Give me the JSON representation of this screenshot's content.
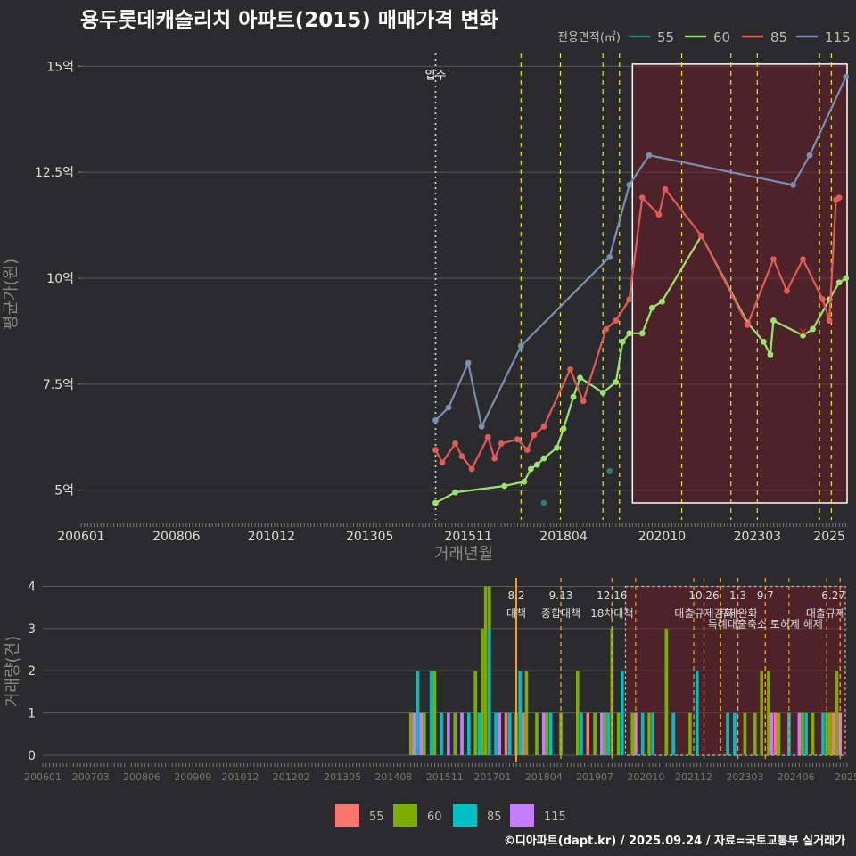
{
  "chart_data": [
    {
      "type": "line",
      "title": "용두롯데캐슬리치 아파트(2015) 매매가격 변화",
      "xlabel": "거래년월",
      "ylabel": "평균가(원)",
      "ylim": [
        4.3,
        15.3
      ],
      "y_ticks": [
        {
          "v": 5,
          "label": "5억"
        },
        {
          "v": 7.5,
          "label": "7.5억"
        },
        {
          "v": 10,
          "label": "10억"
        },
        {
          "v": 12.5,
          "label": "12.5억"
        },
        {
          "v": 15,
          "label": "15억"
        }
      ],
      "x_ticks": [
        {
          "v": 2006.0,
          "label": "200601"
        },
        {
          "v": 2008.42,
          "label": "200806"
        },
        {
          "v": 2010.83,
          "label": "201012"
        },
        {
          "v": 2013.33,
          "label": "201305"
        },
        {
          "v": 2015.83,
          "label": "201511"
        },
        {
          "v": 2018.25,
          "label": "201804"
        },
        {
          "v": 2020.75,
          "label": "202010"
        },
        {
          "v": 2023.17,
          "label": "202303"
        },
        {
          "v": 2025.0,
          "label": "2025"
        }
      ],
      "xlim": [
        2006.0,
        2025.45
      ],
      "legend_title": "전용면적(㎡)",
      "colors": {
        "55": "#2e7d7a",
        "60": "#9be36f",
        "85": "#e05a5a",
        "115": "#7a8fb0"
      },
      "series": [
        {
          "name": "55",
          "line": false,
          "points": [
            [
              2017.75,
              4.7
            ],
            [
              2019.42,
              5.45
            ]
          ]
        },
        {
          "name": "60",
          "line": true,
          "points": [
            [
              2015.0,
              4.7
            ],
            [
              2015.5,
              4.95
            ],
            [
              2016.75,
              5.1
            ],
            [
              2017.25,
              5.2
            ],
            [
              2017.42,
              5.5
            ],
            [
              2017.58,
              5.6
            ],
            [
              2017.75,
              5.75
            ],
            [
              2018.08,
              6.0
            ],
            [
              2018.25,
              6.45
            ],
            [
              2018.5,
              7.2
            ],
            [
              2018.67,
              7.65
            ],
            [
              2019.25,
              7.3
            ],
            [
              2019.58,
              7.55
            ],
            [
              2019.75,
              8.5
            ],
            [
              2019.92,
              8.7
            ],
            [
              2020.25,
              8.7
            ],
            [
              2020.5,
              9.3
            ],
            [
              2020.75,
              9.45
            ],
            [
              2021.75,
              11.0
            ],
            [
              2022.92,
              8.95
            ],
            [
              2023.33,
              8.5
            ],
            [
              2023.5,
              8.2
            ],
            [
              2023.58,
              9.0
            ],
            [
              2024.33,
              8.65
            ],
            [
              2024.58,
              8.8
            ],
            [
              2025.0,
              9.5
            ],
            [
              2025.25,
              9.9
            ],
            [
              2025.42,
              10.0
            ]
          ]
        },
        {
          "name": "85",
          "line": true,
          "points": [
            [
              2015.0,
              5.95
            ],
            [
              2015.17,
              5.65
            ],
            [
              2015.5,
              6.1
            ],
            [
              2015.67,
              5.8
            ],
            [
              2015.92,
              5.5
            ],
            [
              2016.33,
              6.25
            ],
            [
              2016.5,
              5.75
            ],
            [
              2016.67,
              6.1
            ],
            [
              2017.08,
              6.2
            ],
            [
              2017.33,
              5.95
            ],
            [
              2017.5,
              6.3
            ],
            [
              2017.75,
              6.5
            ],
            [
              2018.42,
              7.85
            ],
            [
              2018.75,
              7.1
            ],
            [
              2019.33,
              8.8
            ],
            [
              2019.58,
              9.0
            ],
            [
              2019.92,
              9.5
            ],
            [
              2020.25,
              11.9
            ],
            [
              2020.67,
              11.5
            ],
            [
              2020.83,
              12.1
            ],
            [
              2021.75,
              11.0
            ],
            [
              2022.92,
              8.9
            ],
            [
              2023.58,
              10.45
            ],
            [
              2023.92,
              9.7
            ],
            [
              2024.33,
              10.45
            ],
            [
              2024.83,
              9.5
            ],
            [
              2025.0,
              9.0
            ],
            [
              2025.17,
              11.85
            ],
            [
              2025.25,
              11.9
            ]
          ]
        },
        {
          "name": "115",
          "line": true,
          "points": [
            [
              2015.0,
              6.65
            ],
            [
              2015.33,
              6.95
            ],
            [
              2015.83,
              8.0
            ],
            [
              2016.17,
              6.5
            ],
            [
              2017.17,
              8.4
            ],
            [
              2019.42,
              10.5
            ],
            [
              2019.92,
              12.2
            ],
            [
              2020.42,
              12.9
            ],
            [
              2024.08,
              12.2
            ],
            [
              2024.5,
              12.9
            ],
            [
              2025.42,
              14.75
            ]
          ]
        }
      ],
      "annotations": [
        {
          "text": "입주",
          "x": 2015.0,
          "y": 14.7
        },
        {
          "text": "×",
          "x": 2024.33,
          "y": 8.75
        }
      ],
      "vlines": [
        2015.0,
        2017.17,
        2018.17,
        2019.25,
        2019.67,
        2021.25,
        2022.5,
        2023.17,
        2024.75,
        2025.05
      ],
      "highlight": {
        "x": [
          2020.0,
          2025.45
        ],
        "y": [
          4.7,
          15.05
        ]
      }
    },
    {
      "type": "bar",
      "ylabel": "거래량(건)",
      "ylim": [
        0,
        4.2
      ],
      "y_ticks": [
        {
          "v": 0,
          "label": "0"
        },
        {
          "v": 1,
          "label": "1"
        },
        {
          "v": 2,
          "label": "2"
        },
        {
          "v": 3,
          "label": "3"
        },
        {
          "v": 4,
          "label": "4"
        }
      ],
      "x_ticks": [
        {
          "v": 2006.0,
          "label": "200601"
        },
        {
          "v": 2007.17,
          "label": "200703"
        },
        {
          "v": 2008.42,
          "label": "200806"
        },
        {
          "v": 2009.67,
          "label": "200909"
        },
        {
          "v": 2010.83,
          "label": "201012"
        },
        {
          "v": 2012.08,
          "label": "201202"
        },
        {
          "v": 2013.33,
          "label": "201305"
        },
        {
          "v": 2014.58,
          "label": "201408"
        },
        {
          "v": 2015.83,
          "label": "201511"
        },
        {
          "v": 2017.0,
          "label": "201701"
        },
        {
          "v": 2018.25,
          "label": "201804"
        },
        {
          "v": 2019.5,
          "label": "201907"
        },
        {
          "v": 2020.75,
          "label": "202010"
        },
        {
          "v": 2021.92,
          "label": "202112"
        },
        {
          "v": 2023.17,
          "label": "202303"
        },
        {
          "v": 2024.42,
          "label": "202406"
        },
        {
          "v": 2025.67,
          "label": "2025"
        }
      ],
      "xlim": [
        2006.0,
        2025.67
      ],
      "colors": {
        "55": "#f8766d",
        "60": "#7cae00",
        "85": "#00bfc4",
        "115": "#c77cff"
      },
      "legend": [
        "55",
        "60",
        "85",
        "115"
      ],
      "series": [
        {
          "name": "55",
          "points": [
            [
              2017.33,
              1
            ],
            [
              2017.75,
              1
            ],
            [
              2019.33,
              1
            ],
            [
              2023.92,
              1
            ],
            [
              2025.33,
              1
            ]
          ]
        },
        {
          "name": "60",
          "points": [
            [
              2015.0,
              1
            ],
            [
              2015.33,
              1
            ],
            [
              2015.58,
              2
            ],
            [
              2016.08,
              1
            ],
            [
              2016.58,
              2
            ],
            [
              2016.75,
              3
            ],
            [
              2016.83,
              4
            ],
            [
              2016.92,
              4
            ],
            [
              2017.58,
              1
            ],
            [
              2017.83,
              2
            ],
            [
              2018.08,
              1
            ],
            [
              2018.33,
              1
            ],
            [
              2018.67,
              1
            ],
            [
              2019.08,
              2
            ],
            [
              2019.5,
              1
            ],
            [
              2019.75,
              1
            ],
            [
              2019.92,
              3
            ],
            [
              2020.08,
              1
            ],
            [
              2020.42,
              1
            ],
            [
              2020.83,
              1
            ],
            [
              2021.25,
              3
            ],
            [
              2021.83,
              1
            ],
            [
              2023.17,
              1
            ],
            [
              2023.42,
              1
            ],
            [
              2023.58,
              2
            ],
            [
              2023.75,
              2
            ],
            [
              2024.0,
              1
            ],
            [
              2024.58,
              1
            ],
            [
              2024.83,
              1
            ],
            [
              2025.17,
              1
            ],
            [
              2025.25,
              1
            ],
            [
              2025.42,
              2
            ]
          ]
        },
        {
          "name": "85",
          "points": [
            [
              2015.17,
              2
            ],
            [
              2015.5,
              2
            ],
            [
              2015.75,
              1
            ],
            [
              2016.42,
              1
            ],
            [
              2016.67,
              1
            ],
            [
              2016.92,
              3
            ],
            [
              2017.08,
              1
            ],
            [
              2017.42,
              1
            ],
            [
              2017.67,
              2
            ],
            [
              2018.42,
              1
            ],
            [
              2019.17,
              1
            ],
            [
              2019.83,
              1
            ],
            [
              2020.17,
              2
            ],
            [
              2020.67,
              1
            ],
            [
              2020.92,
              1
            ],
            [
              2021.42,
              1
            ],
            [
              2022.0,
              2
            ],
            [
              2022.75,
              1
            ],
            [
              2022.92,
              1
            ],
            [
              2024.25,
              1
            ],
            [
              2024.67,
              1
            ],
            [
              2025.08,
              1
            ]
          ]
        },
        {
          "name": "115",
          "points": [
            [
              2015.08,
              1
            ],
            [
              2015.25,
              1
            ],
            [
              2015.92,
              1
            ],
            [
              2016.25,
              1
            ],
            [
              2017.17,
              1
            ],
            [
              2018.25,
              1
            ],
            [
              2019.67,
              1
            ],
            [
              2020.5,
              1
            ],
            [
              2023.83,
              1
            ],
            [
              2024.5,
              1
            ],
            [
              2025.5,
              1
            ]
          ]
        }
      ],
      "policy_lines": [
        {
          "x": 2017.58,
          "date": "8.2",
          "label": "대책"
        },
        {
          "x": 2018.67,
          "date": "9.13",
          "label": "종합대책"
        },
        {
          "x": 2019.92,
          "date": "12.16",
          "label": "18차대책"
        },
        {
          "x": 2022.17,
          "date": "10.26",
          "label": "대출규제강화"
        },
        {
          "x": 2023.0,
          "date": "1.3",
          "label": "규제완화"
        },
        {
          "x": 2023.67,
          "date": "9.7",
          "label": "특례대출축소 토허제 해제"
        },
        {
          "x": 2025.5,
          "date": "6.27",
          "label": "대출규제"
        }
      ],
      "extra_dashed": [
        2020.5,
        2021.92,
        2022.58,
        2024.25,
        2025.17
      ],
      "highlight": {
        "x": [
          2020.25,
          2025.67
        ]
      }
    }
  ],
  "footer": "©디아파트(dapt.kr) / 2025.09.24 / 자료=국토교통부 실거래가"
}
